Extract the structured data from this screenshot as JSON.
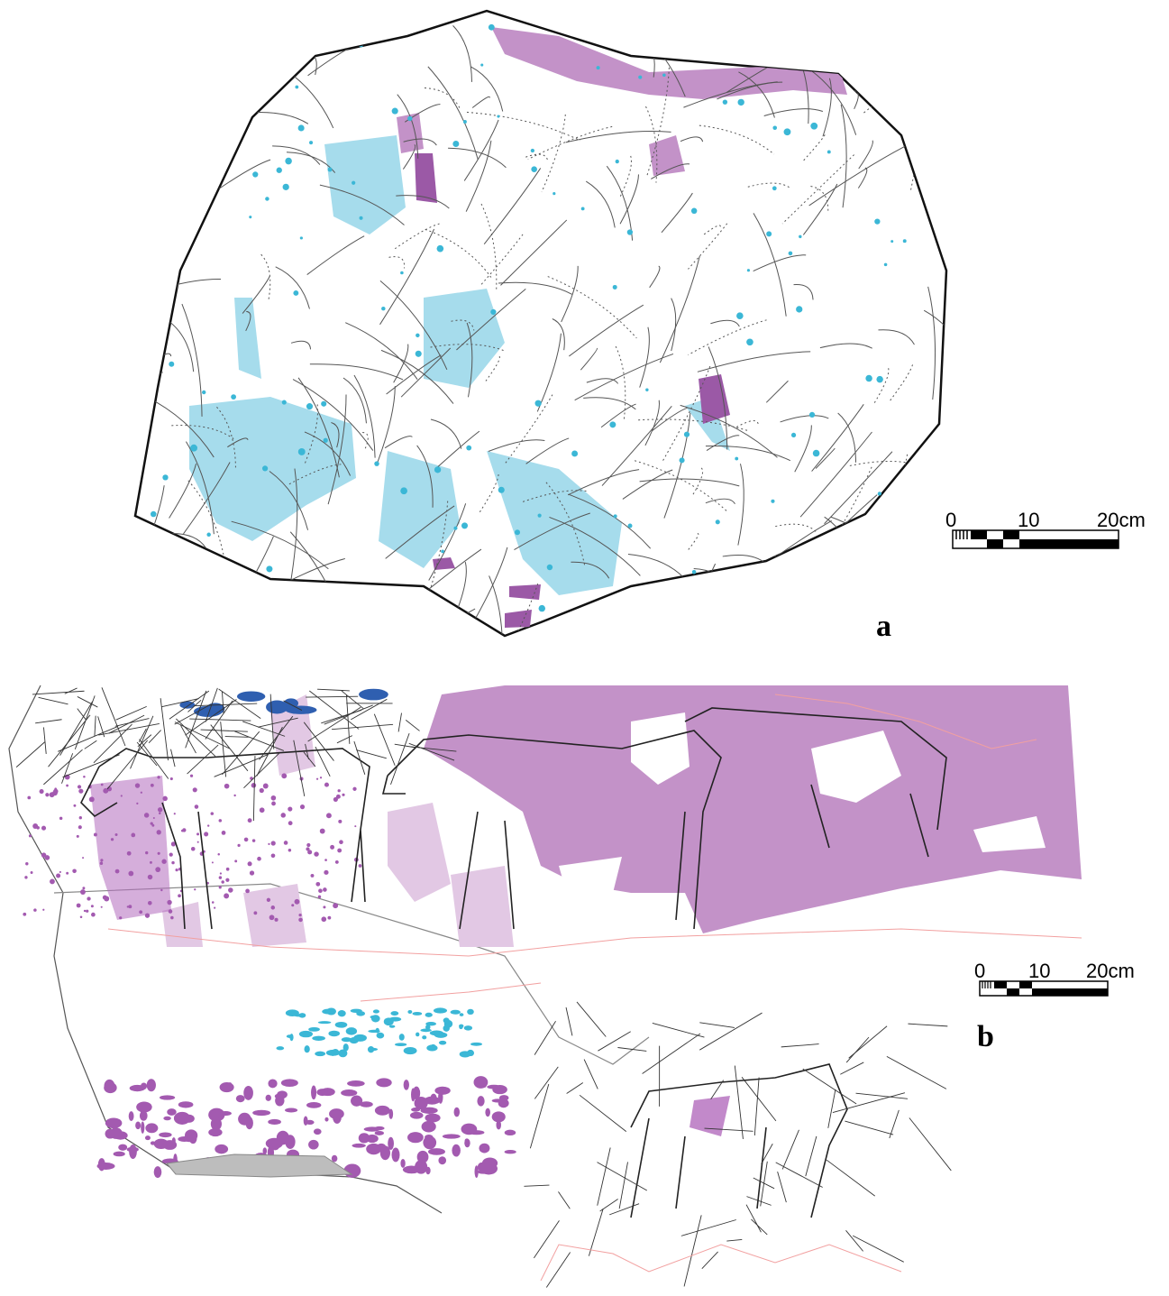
{
  "panels": [
    {
      "label": "a",
      "scale": {
        "labels": [
          "0",
          "10",
          "20cm"
        ]
      }
    },
    {
      "label": "b",
      "scale": {
        "labels": [
          "0",
          "10",
          "20cm"
        ]
      }
    }
  ]
}
